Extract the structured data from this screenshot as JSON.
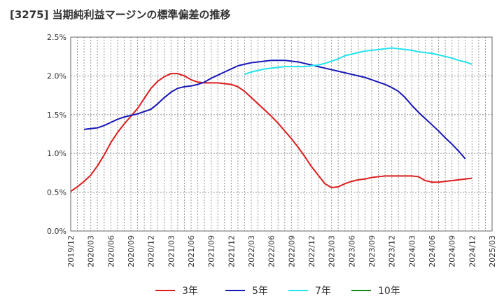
{
  "page": {
    "title": "[3275]  当期純利益マージンの標準偏差の推移"
  },
  "chart_data": {
    "type": "line",
    "title": "[3275]  当期純利益マージンの標準偏差の推移",
    "xlabel": "",
    "ylabel": "",
    "ylim": [
      0,
      2.5
    ],
    "yticks": [
      "0.0%",
      "0.5%",
      "1.0%",
      "1.5%",
      "2.0%",
      "2.5%"
    ],
    "xticks": [
      "2019/12",
      "2020/03",
      "2020/06",
      "2020/09",
      "2020/12",
      "2021/03",
      "2021/06",
      "2021/09",
      "2021/12",
      "2022/03",
      "2022/06",
      "2022/09",
      "2022/12",
      "2023/03",
      "2023/06",
      "2023/09",
      "2023/12",
      "2024/03",
      "2024/06",
      "2024/09",
      "2024/12",
      "2025/03"
    ],
    "grid": true,
    "legend_position": "bottom",
    "series": [
      {
        "name": "3年",
        "color": "#dd1c1c",
        "points": [
          [
            "2019/12",
            0.51
          ],
          [
            "2020/01",
            0.57
          ],
          [
            "2020/02",
            0.64
          ],
          [
            "2020/03",
            0.72
          ],
          [
            "2020/04",
            0.84
          ],
          [
            "2020/05",
            0.98
          ],
          [
            "2020/06",
            1.14
          ],
          [
            "2020/07",
            1.27
          ],
          [
            "2020/08",
            1.38
          ],
          [
            "2020/09",
            1.48
          ],
          [
            "2020/10",
            1.58
          ],
          [
            "2020/11",
            1.71
          ],
          [
            "2020/12",
            1.84
          ],
          [
            "2021/01",
            1.93
          ],
          [
            "2021/02",
            1.99
          ],
          [
            "2021/03",
            2.03
          ],
          [
            "2021/04",
            2.03
          ],
          [
            "2021/05",
            2.0
          ],
          [
            "2021/06",
            1.95
          ],
          [
            "2021/07",
            1.92
          ],
          [
            "2021/08",
            1.91
          ],
          [
            "2021/09",
            1.91
          ],
          [
            "2021/10",
            1.91
          ],
          [
            "2021/11",
            1.9
          ],
          [
            "2021/12",
            1.89
          ],
          [
            "2022/01",
            1.86
          ],
          [
            "2022/02",
            1.8
          ],
          [
            "2022/03",
            1.72
          ],
          [
            "2022/04",
            1.64
          ],
          [
            "2022/05",
            1.56
          ],
          [
            "2022/06",
            1.48
          ],
          [
            "2022/07",
            1.39
          ],
          [
            "2022/08",
            1.29
          ],
          [
            "2022/09",
            1.19
          ],
          [
            "2022/10",
            1.08
          ],
          [
            "2022/11",
            0.96
          ],
          [
            "2022/12",
            0.83
          ],
          [
            "2023/01",
            0.72
          ],
          [
            "2023/02",
            0.61
          ],
          [
            "2023/03",
            0.56
          ],
          [
            "2023/04",
            0.57
          ],
          [
            "2023/05",
            0.61
          ],
          [
            "2023/06",
            0.64
          ],
          [
            "2023/07",
            0.66
          ],
          [
            "2023/08",
            0.67
          ],
          [
            "2023/09",
            0.69
          ],
          [
            "2023/10",
            0.7
          ],
          [
            "2023/11",
            0.71
          ],
          [
            "2023/12",
            0.71
          ],
          [
            "2024/01",
            0.71
          ],
          [
            "2024/02",
            0.71
          ],
          [
            "2024/03",
            0.71
          ],
          [
            "2024/04",
            0.7
          ],
          [
            "2024/05",
            0.65
          ],
          [
            "2024/06",
            0.63
          ],
          [
            "2024/07",
            0.63
          ],
          [
            "2024/08",
            0.64
          ],
          [
            "2024/09",
            0.65
          ],
          [
            "2024/10",
            0.66
          ],
          [
            "2024/11",
            0.67
          ],
          [
            "2024/12",
            0.68
          ]
        ]
      },
      {
        "name": "5年",
        "color": "#1818b8",
        "points": [
          [
            "2020/02",
            1.31
          ],
          [
            "2020/03",
            1.32
          ],
          [
            "2020/04",
            1.33
          ],
          [
            "2020/05",
            1.36
          ],
          [
            "2020/06",
            1.4
          ],
          [
            "2020/07",
            1.44
          ],
          [
            "2020/08",
            1.47
          ],
          [
            "2020/09",
            1.49
          ],
          [
            "2020/10",
            1.51
          ],
          [
            "2020/11",
            1.54
          ],
          [
            "2020/12",
            1.57
          ],
          [
            "2021/01",
            1.64
          ],
          [
            "2021/02",
            1.72
          ],
          [
            "2021/03",
            1.79
          ],
          [
            "2021/04",
            1.84
          ],
          [
            "2021/05",
            1.86
          ],
          [
            "2021/06",
            1.87
          ],
          [
            "2021/07",
            1.89
          ],
          [
            "2021/08",
            1.92
          ],
          [
            "2021/09",
            1.97
          ],
          [
            "2021/10",
            2.01
          ],
          [
            "2021/11",
            2.05
          ],
          [
            "2021/12",
            2.09
          ],
          [
            "2022/01",
            2.13
          ],
          [
            "2022/02",
            2.15
          ],
          [
            "2022/03",
            2.17
          ],
          [
            "2022/04",
            2.18
          ],
          [
            "2022/05",
            2.19
          ],
          [
            "2022/06",
            2.2
          ],
          [
            "2022/07",
            2.2
          ],
          [
            "2022/08",
            2.2
          ],
          [
            "2022/09",
            2.19
          ],
          [
            "2022/10",
            2.18
          ],
          [
            "2022/11",
            2.16
          ],
          [
            "2022/12",
            2.14
          ],
          [
            "2023/01",
            2.12
          ],
          [
            "2023/02",
            2.1
          ],
          [
            "2023/03",
            2.08
          ],
          [
            "2023/04",
            2.06
          ],
          [
            "2023/05",
            2.04
          ],
          [
            "2023/06",
            2.02
          ],
          [
            "2023/07",
            2.0
          ],
          [
            "2023/08",
            1.98
          ],
          [
            "2023/09",
            1.95
          ],
          [
            "2023/10",
            1.92
          ],
          [
            "2023/11",
            1.89
          ],
          [
            "2023/12",
            1.85
          ],
          [
            "2024/01",
            1.8
          ],
          [
            "2024/02",
            1.72
          ],
          [
            "2024/03",
            1.62
          ],
          [
            "2024/04",
            1.53
          ],
          [
            "2024/05",
            1.45
          ],
          [
            "2024/06",
            1.37
          ],
          [
            "2024/07",
            1.29
          ],
          [
            "2024/08",
            1.2
          ],
          [
            "2024/09",
            1.12
          ],
          [
            "2024/10",
            1.03
          ],
          [
            "2024/11",
            0.93
          ]
        ]
      },
      {
        "name": "7年",
        "color": "#22e3ee",
        "points": [
          [
            "2022/02",
            2.02
          ],
          [
            "2022/03",
            2.05
          ],
          [
            "2022/04",
            2.07
          ],
          [
            "2022/05",
            2.09
          ],
          [
            "2022/06",
            2.1
          ],
          [
            "2022/07",
            2.11
          ],
          [
            "2022/08",
            2.12
          ],
          [
            "2022/09",
            2.12
          ],
          [
            "2022/10",
            2.12
          ],
          [
            "2022/11",
            2.12
          ],
          [
            "2022/12",
            2.13
          ],
          [
            "2023/01",
            2.14
          ],
          [
            "2023/02",
            2.16
          ],
          [
            "2023/03",
            2.19
          ],
          [
            "2023/04",
            2.22
          ],
          [
            "2023/05",
            2.26
          ],
          [
            "2023/06",
            2.28
          ],
          [
            "2023/07",
            2.3
          ],
          [
            "2023/08",
            2.32
          ],
          [
            "2023/09",
            2.33
          ],
          [
            "2023/10",
            2.34
          ],
          [
            "2023/11",
            2.35
          ],
          [
            "2023/12",
            2.36
          ],
          [
            "2024/01",
            2.35
          ],
          [
            "2024/02",
            2.34
          ],
          [
            "2024/03",
            2.33
          ],
          [
            "2024/04",
            2.31
          ],
          [
            "2024/05",
            2.3
          ],
          [
            "2024/06",
            2.29
          ],
          [
            "2024/07",
            2.27
          ],
          [
            "2024/08",
            2.25
          ],
          [
            "2024/09",
            2.23
          ],
          [
            "2024/10",
            2.2
          ],
          [
            "2024/11",
            2.18
          ],
          [
            "2024/12",
            2.15
          ]
        ]
      },
      {
        "name": "10年",
        "color": "#1a8a1a",
        "points": []
      }
    ]
  }
}
